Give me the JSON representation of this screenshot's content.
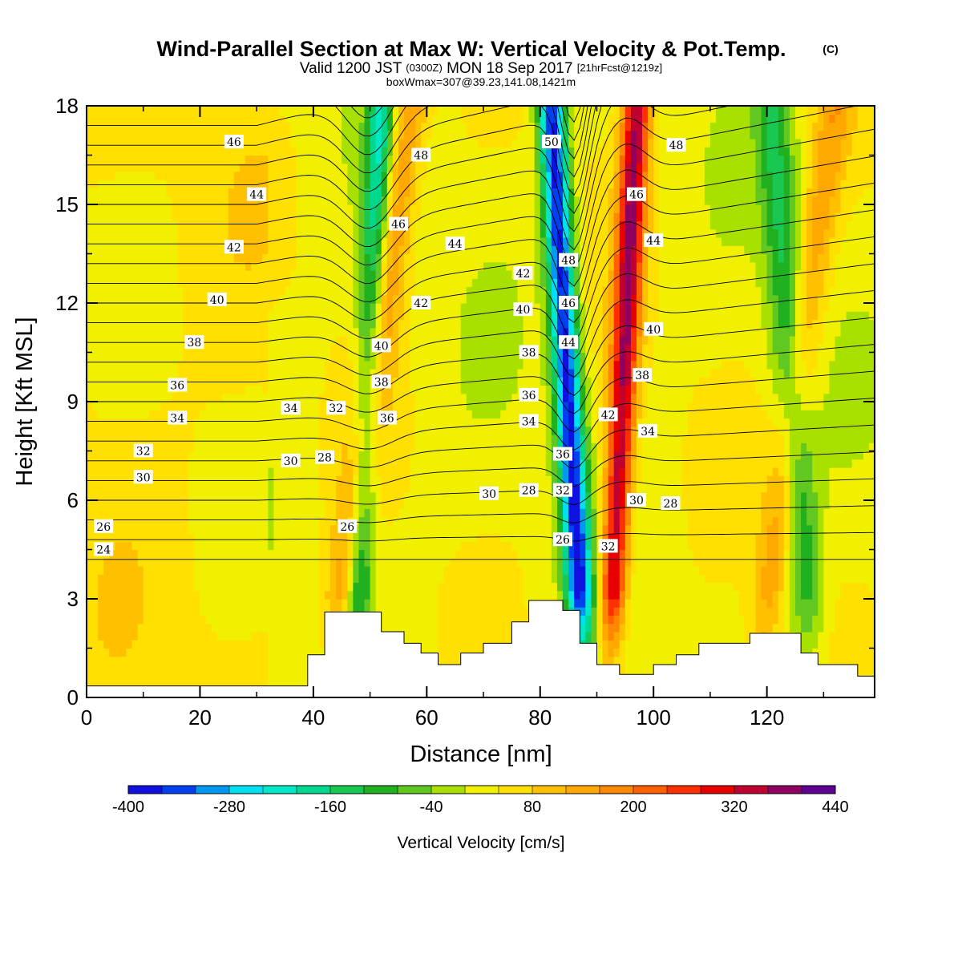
{
  "title": {
    "main": "Wind-Parallel Section at Max W: Vertical Velocity & Pot.Temp.",
    "copyright": "(C)",
    "valid_prefix": "Valid 1200 JST",
    "valid_utc": "(0300Z)",
    "valid_date": "MON 18 Sep 2017",
    "forecast": "[21hrFcst@1219z]",
    "box": "boxWmax=307@39.23,141.08,1421m"
  },
  "chart_data": {
    "type": "heatmap",
    "xlabel": "Distance [nm]",
    "ylabel": "Height [Kft MSL]",
    "xlim": [
      0,
      139
    ],
    "ylim": [
      0,
      18
    ],
    "x_ticks": [
      0,
      20,
      40,
      60,
      80,
      100,
      120
    ],
    "y_ticks": [
      0,
      3,
      6,
      9,
      12,
      15,
      18
    ],
    "grid": false,
    "legend": "colorbar-bottom",
    "colorbar": {
      "title": "Vertical Velocity [cm/s]",
      "levels": [
        -400,
        -360,
        -320,
        -280,
        -240,
        -200,
        -160,
        -120,
        -80,
        -40,
        0,
        40,
        80,
        120,
        160,
        200,
        240,
        280,
        320,
        360,
        400,
        440
      ],
      "labeled_ticks": [
        -400,
        -280,
        -160,
        -40,
        80,
        200,
        320,
        440
      ],
      "colors": [
        "#1010e0",
        "#0040f0",
        "#0098f0",
        "#00e0f0",
        "#00e8c8",
        "#00d890",
        "#18c850",
        "#20b020",
        "#60c820",
        "#a8e000",
        "#f0f000",
        "#ffe000",
        "#ffc000",
        "#ffa800",
        "#ff8800",
        "#ff6000",
        "#ff3000",
        "#e80000",
        "#c00030",
        "#900060",
        "#600090"
      ]
    },
    "velocity_bands": [
      {
        "kind": "updraft",
        "x_bottom": 43,
        "x_top": 57,
        "peak": 150
      },
      {
        "kind": "downdraft",
        "x_bottom": 47,
        "x_top": 52,
        "peak": -220
      },
      {
        "kind": "downdraft",
        "x_bottom": 88,
        "x_top": 82,
        "peak": -400
      },
      {
        "kind": "updraft",
        "x_bottom": 92,
        "x_top": 97,
        "peak": 330
      },
      {
        "kind": "updraft",
        "x_bottom": 118,
        "x_top": 132,
        "peak": 110
      },
      {
        "kind": "downdraft",
        "x_bottom": 128,
        "x_top": 121,
        "peak": -140
      }
    ],
    "terrain": [
      [
        0,
        0.35
      ],
      [
        39,
        0.35
      ],
      [
        39,
        1.3
      ],
      [
        42,
        1.3
      ],
      [
        42,
        2.6
      ],
      [
        52,
        2.6
      ],
      [
        52,
        2.0
      ],
      [
        56,
        2.0
      ],
      [
        56,
        1.65
      ],
      [
        59,
        1.65
      ],
      [
        59,
        1.35
      ],
      [
        62,
        1.35
      ],
      [
        62,
        1.0
      ],
      [
        66,
        1.0
      ],
      [
        66,
        1.35
      ],
      [
        70,
        1.35
      ],
      [
        70,
        1.65
      ],
      [
        75,
        1.65
      ],
      [
        75,
        2.3
      ],
      [
        78,
        2.3
      ],
      [
        78,
        2.95
      ],
      [
        84,
        2.95
      ],
      [
        84,
        2.65
      ],
      [
        87,
        2.65
      ],
      [
        87,
        1.65
      ],
      [
        90,
        1.65
      ],
      [
        90,
        1.0
      ],
      [
        94,
        1.0
      ],
      [
        94,
        0.7
      ],
      [
        100,
        0.7
      ],
      [
        100,
        1.0
      ],
      [
        104,
        1.0
      ],
      [
        104,
        1.3
      ],
      [
        108,
        1.3
      ],
      [
        108,
        1.65
      ],
      [
        117,
        1.65
      ],
      [
        117,
        1.95
      ],
      [
        126,
        1.95
      ],
      [
        126,
        1.35
      ],
      [
        129,
        1.35
      ],
      [
        129,
        1.0
      ],
      [
        136,
        1.0
      ],
      [
        136,
        0.65
      ],
      [
        139,
        0.65
      ]
    ],
    "theta_contours": {
      "interval": 1,
      "labeled": [
        {
          "label": "24",
          "x": 3,
          "y": 4.5
        },
        {
          "label": "26",
          "x": 3,
          "y": 5.2
        },
        {
          "label": "26",
          "x": 46,
          "y": 5.2
        },
        {
          "label": "26",
          "x": 84,
          "y": 4.8
        },
        {
          "label": "28",
          "x": 42,
          "y": 7.3
        },
        {
          "label": "28",
          "x": 78,
          "y": 6.3
        },
        {
          "label": "28",
          "x": 103,
          "y": 5.9
        },
        {
          "label": "30",
          "x": 10,
          "y": 6.7
        },
        {
          "label": "30",
          "x": 36,
          "y": 7.2
        },
        {
          "label": "30",
          "x": 71,
          "y": 6.2
        },
        {
          "label": "30",
          "x": 97,
          "y": 6.0
        },
        {
          "label": "32",
          "x": 10,
          "y": 7.5
        },
        {
          "label": "32",
          "x": 44,
          "y": 8.8
        },
        {
          "label": "32",
          "x": 84,
          "y": 6.3
        },
        {
          "label": "32",
          "x": 92,
          "y": 4.6
        },
        {
          "label": "34",
          "x": 16,
          "y": 8.5
        },
        {
          "label": "34",
          "x": 36,
          "y": 8.8
        },
        {
          "label": "34",
          "x": 78,
          "y": 8.4
        },
        {
          "label": "34",
          "x": 99,
          "y": 8.1
        },
        {
          "label": "36",
          "x": 16,
          "y": 9.5
        },
        {
          "label": "36",
          "x": 53,
          "y": 8.5
        },
        {
          "label": "36",
          "x": 78,
          "y": 9.2
        },
        {
          "label": "36",
          "x": 84,
          "y": 7.4
        },
        {
          "label": "38",
          "x": 19,
          "y": 10.8
        },
        {
          "label": "38",
          "x": 52,
          "y": 9.6
        },
        {
          "label": "38",
          "x": 78,
          "y": 10.5
        },
        {
          "label": "38",
          "x": 98,
          "y": 9.8
        },
        {
          "label": "40",
          "x": 23,
          "y": 12.1
        },
        {
          "label": "40",
          "x": 52,
          "y": 10.7
        },
        {
          "label": "40",
          "x": 77,
          "y": 11.8
        },
        {
          "label": "40",
          "x": 100,
          "y": 11.2
        },
        {
          "label": "42",
          "x": 26,
          "y": 13.7
        },
        {
          "label": "42",
          "x": 59,
          "y": 12.0
        },
        {
          "label": "42",
          "x": 77,
          "y": 12.9
        },
        {
          "label": "42",
          "x": 92,
          "y": 8.6
        },
        {
          "label": "44",
          "x": 30,
          "y": 15.3
        },
        {
          "label": "44",
          "x": 65,
          "y": 13.8
        },
        {
          "label": "44",
          "x": 85,
          "y": 10.8
        },
        {
          "label": "44",
          "x": 100,
          "y": 13.9
        },
        {
          "label": "46",
          "x": 26,
          "y": 16.9
        },
        {
          "label": "46",
          "x": 55,
          "y": 14.4
        },
        {
          "label": "46",
          "x": 85,
          "y": 12.0
        },
        {
          "label": "46",
          "x": 97,
          "y": 15.3
        },
        {
          "label": "48",
          "x": 59,
          "y": 16.5
        },
        {
          "label": "48",
          "x": 85,
          "y": 13.3
        },
        {
          "label": "48",
          "x": 104,
          "y": 16.8
        },
        {
          "label": "50",
          "x": 82,
          "y": 16.9
        }
      ]
    }
  }
}
